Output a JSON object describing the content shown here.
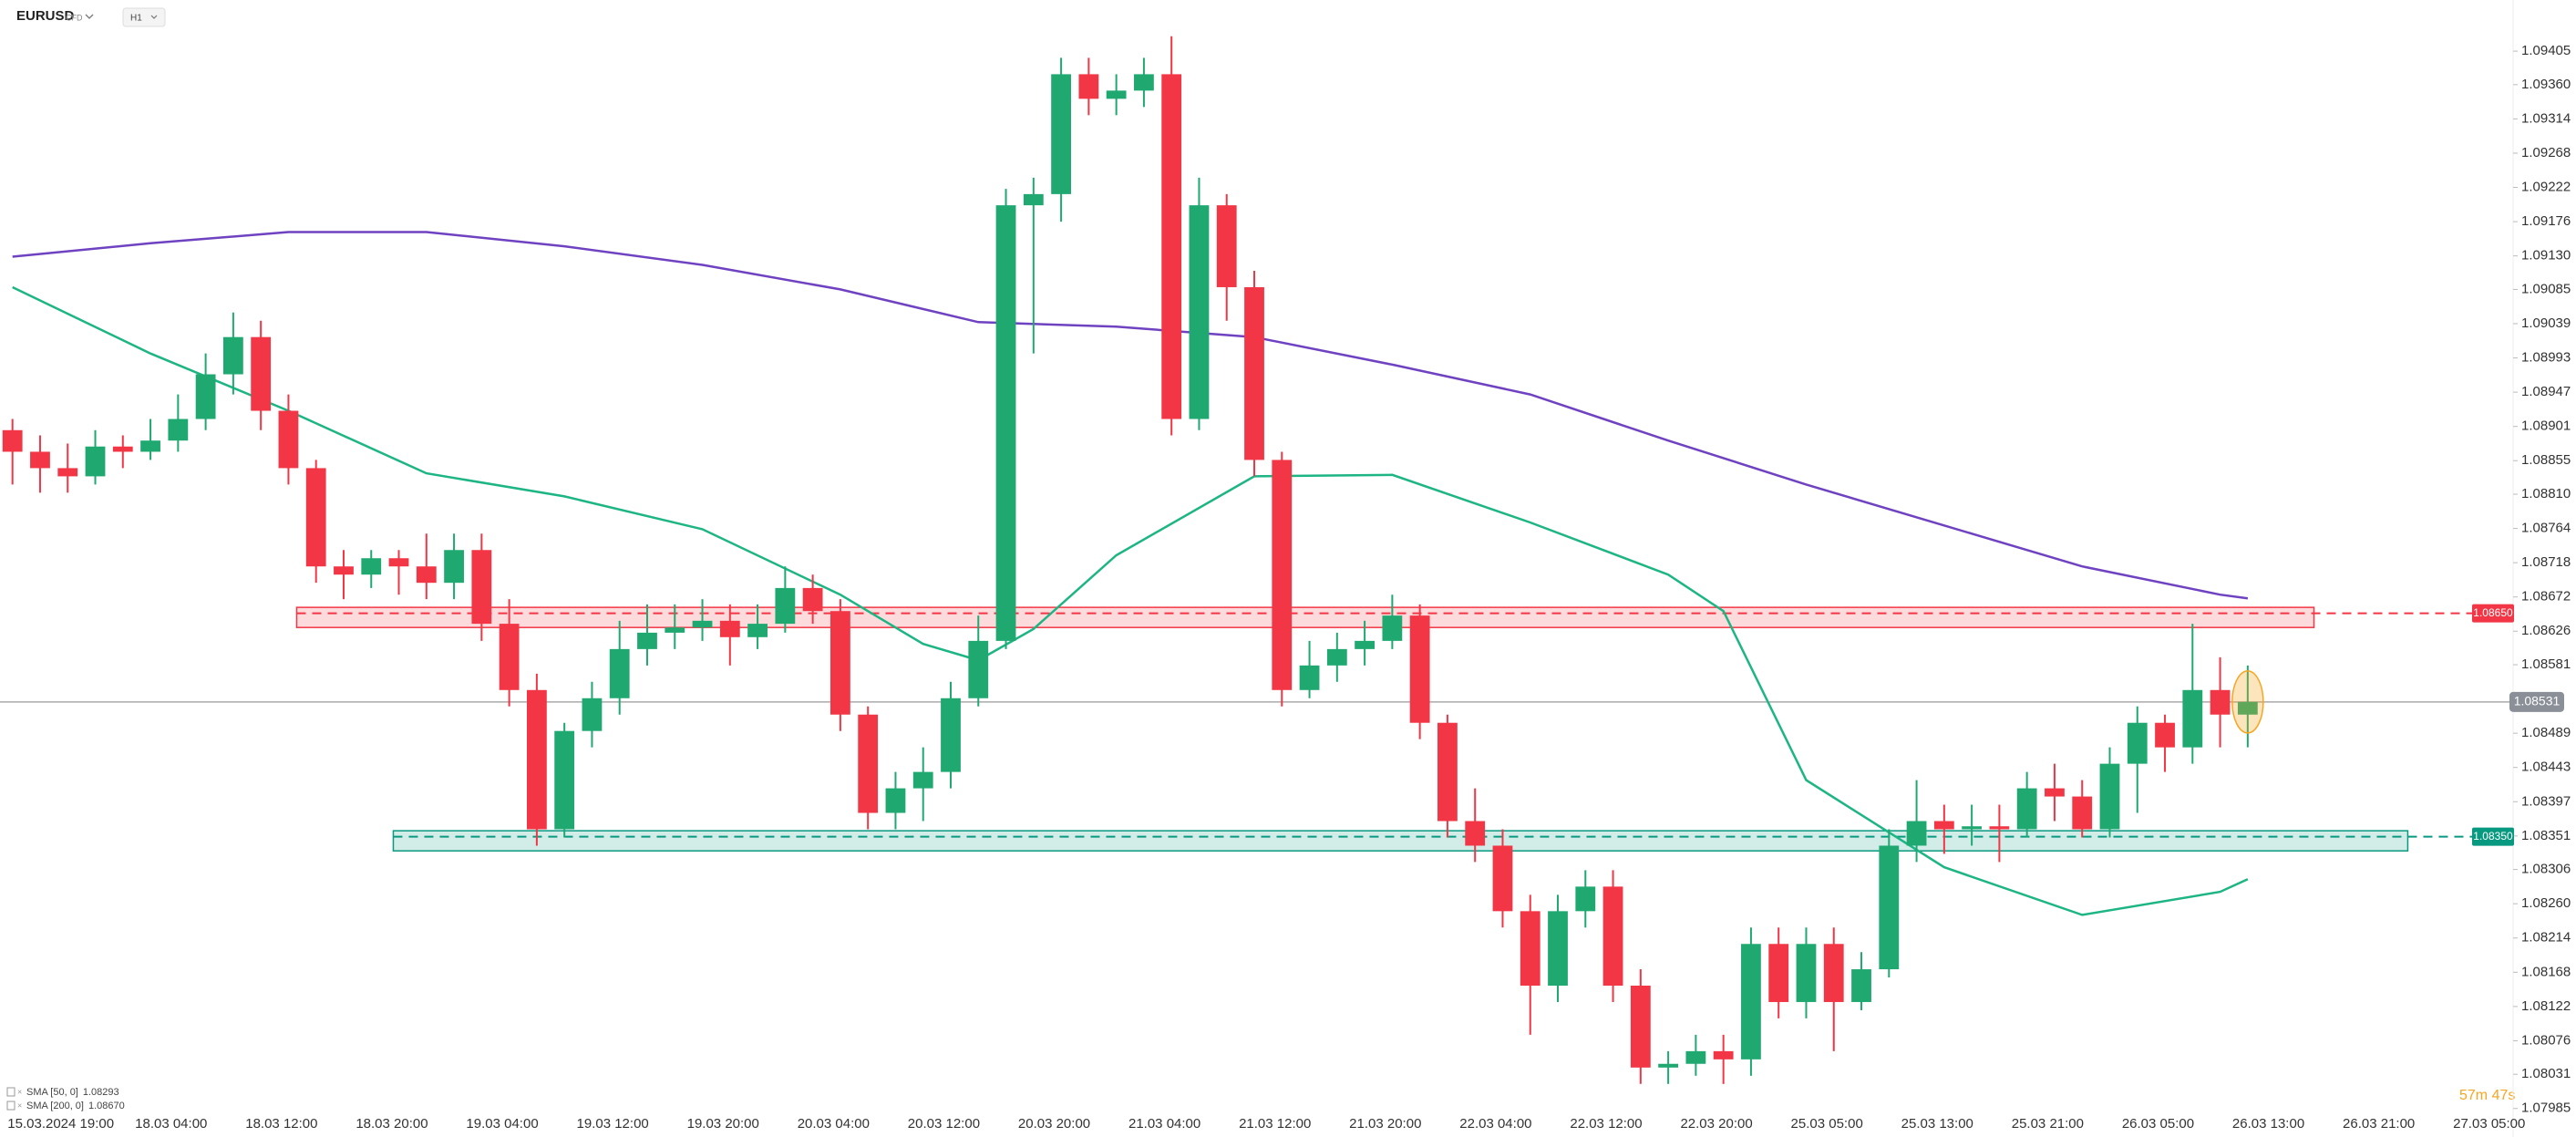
{
  "chart_data": {
    "type": "candlestick",
    "symbol": "EURUSD",
    "instrument_type": "CFD",
    "interval": "H1",
    "timer": "57m 47s",
    "categories": [
      "15.03.2024 19:00",
      "18.03 04:00",
      "18.03 12:00",
      "18.03 20:00",
      "19.03 04:00",
      "19.03 12:00",
      "19.03 20:00",
      "20.03 04:00",
      "20.03 12:00",
      "20.03 20:00",
      "21.03 04:00",
      "21.03 12:00",
      "21.03 20:00",
      "22.03 04:00",
      "22.03 12:00",
      "22.03 20:00",
      "25.03 05:00",
      "25.03 13:00",
      "25.03 21:00",
      "26.03 05:00",
      "26.03 13:00",
      "26.03 21:00",
      "27.03 05:00"
    ],
    "ylim": [
      1.0797,
      1.0947
    ],
    "yticks": [
      1.09405,
      {
        "value": 1.0936,
        "label": "1.09360"
      },
      1.09314,
      1.09268,
      1.09222,
      1.09176,
      {
        "value": 1.0913,
        "label": "1.09130"
      },
      1.09085,
      1.09039,
      1.08993,
      1.08947,
      1.08901,
      1.08855,
      {
        "value": 1.0881,
        "label": "1.08810"
      },
      1.08764,
      1.08718,
      1.08672,
      1.08626,
      1.08581,
      1.08489,
      1.08443,
      1.08397,
      1.08351,
      1.08306,
      {
        "value": 1.0826,
        "label": "1.08260"
      },
      1.08214,
      1.08168,
      1.08122,
      1.08076,
      1.08031,
      1.07985
    ],
    "up_color": "#1fa971",
    "down_color": "#f23645",
    "candles": {
      "open": [
        1.08896,
        1.08867,
        1.08845,
        1.08834,
        1.08874,
        1.08867,
        1.08882,
        1.08911,
        1.08971,
        1.09021,
        1.08922,
        1.08845,
        1.08713,
        1.08702,
        1.08724,
        1.08713,
        1.08691,
        1.08735,
        1.08636,
        1.08547,
        1.0836,
        1.08492,
        1.08536,
        1.08602,
        1.08624,
        1.08631,
        1.0864,
        1.08618,
        1.08636,
        1.08684,
        1.08653,
        1.08514,
        1.08382,
        1.08415,
        1.08437,
        1.08536,
        1.08613,
        1.09198,
        1.09213,
        1.09374,
        1.09341,
        1.09352,
        1.09374,
        1.08911,
        1.09198,
        1.09088,
        1.08856,
        1.08547,
        1.0858,
        1.08602,
        1.08613,
        1.08647,
        1.08503,
        1.08371,
        1.08338,
        1.0825,
        1.0815,
        1.0825,
        1.08283,
        1.0815,
        1.0804,
        1.08045,
        1.08062,
        1.08051,
        1.08206,
        1.08128,
        1.08206,
        1.08128,
        1.08172,
        1.08338,
        1.08371,
        1.0836,
        1.08364,
        1.0836,
        1.08415,
        1.08404,
        1.0836,
        1.08448,
        1.08503,
        1.0847,
        1.08547,
        1.08514
      ],
      "high": [
        1.08911,
        1.08889,
        1.08878,
        1.08896,
        1.08889,
        1.08911,
        1.08944,
        1.08999,
        1.09054,
        1.09043,
        1.08944,
        1.08856,
        1.08735,
        1.08735,
        1.08735,
        1.08757,
        1.08757,
        1.08757,
        1.08669,
        1.08569,
        1.08503,
        1.08558,
        1.0864,
        1.08662,
        1.08662,
        1.08669,
        1.08662,
        1.08662,
        1.08713,
        1.08702,
        1.08669,
        1.08525,
        1.08437,
        1.0847,
        1.08558,
        1.08647,
        1.0922,
        1.09235,
        1.09396,
        1.09396,
        1.09374,
        1.09396,
        1.09425,
        1.09235,
        1.09213,
        1.0911,
        1.08867,
        1.08613,
        1.08624,
        1.0864,
        1.08675,
        1.08662,
        1.08514,
        1.08415,
        1.0836,
        1.08272,
        1.08272,
        1.08305,
        1.08305,
        1.08172,
        1.08062,
        1.08084,
        1.08084,
        1.08228,
        1.08228,
        1.08228,
        1.08228,
        1.08195,
        1.0836,
        1.08426,
        1.08393,
        1.08393,
        1.08393,
        1.08437,
        1.08448,
        1.08426,
        1.0847,
        1.08525,
        1.08514,
        1.08636,
        1.08591,
        1.0858
      ],
      "low": [
        1.08823,
        1.08812,
        1.08812,
        1.08823,
        1.08845,
        1.08856,
        1.08867,
        1.08896,
        1.08944,
        1.08896,
        1.08823,
        1.08691,
        1.08669,
        1.08684,
        1.08675,
        1.08669,
        1.08669,
        1.08613,
        1.08525,
        1.08338,
        1.08349,
        1.0847,
        1.08514,
        1.0858,
        1.08602,
        1.08613,
        1.0858,
        1.08602,
        1.08624,
        1.08636,
        1.08492,
        1.0836,
        1.0836,
        1.08371,
        1.08415,
        1.08525,
        1.08602,
        1.08999,
        1.09176,
        1.09319,
        1.09319,
        1.0933,
        1.08889,
        1.08896,
        1.09043,
        1.08834,
        1.08525,
        1.08536,
        1.08558,
        1.0858,
        1.08602,
        1.08481,
        1.08349,
        1.08316,
        1.08228,
        1.08084,
        1.08128,
        1.08228,
        1.08128,
        1.08018,
        1.08018,
        1.08029,
        1.08018,
        1.08029,
        1.08106,
        1.08106,
        1.08062,
        1.08117,
        1.08161,
        1.08316,
        1.08327,
        1.08338,
        1.08316,
        1.08349,
        1.08371,
        1.08349,
        1.08349,
        1.08382,
        1.08437,
        1.08448,
        1.0847,
        1.0847
      ],
      "close": [
        1.08867,
        1.08845,
        1.08834,
        1.08874,
        1.08867,
        1.08882,
        1.08911,
        1.08971,
        1.09021,
        1.08922,
        1.08845,
        1.08713,
        1.08702,
        1.08724,
        1.08713,
        1.08691,
        1.08735,
        1.08636,
        1.08547,
        1.0836,
        1.08492,
        1.08536,
        1.08602,
        1.08624,
        1.08631,
        1.0864,
        1.08618,
        1.08636,
        1.08684,
        1.08653,
        1.08514,
        1.08382,
        1.08415,
        1.08437,
        1.08536,
        1.08613,
        1.09198,
        1.09213,
        1.09374,
        1.09341,
        1.09352,
        1.09374,
        1.08911,
        1.09198,
        1.09088,
        1.08856,
        1.08547,
        1.0858,
        1.08602,
        1.08613,
        1.08647,
        1.08503,
        1.08371,
        1.08338,
        1.0825,
        1.0815,
        1.0825,
        1.08283,
        1.0815,
        1.0804,
        1.08045,
        1.08062,
        1.08051,
        1.08206,
        1.08128,
        1.08206,
        1.08128,
        1.08172,
        1.08338,
        1.08371,
        1.0836,
        1.08364,
        1.0836,
        1.08415,
        1.08404,
        1.0836,
        1.08448,
        1.08503,
        1.0847,
        1.08547,
        1.08514,
        1.08531
      ]
    },
    "series": [
      {
        "name": "SMA [50, 0]",
        "legend_value": "1.08293",
        "color": "#1db584",
        "x": [
          0,
          5,
          10,
          15,
          20,
          25,
          30,
          33,
          35,
          37,
          40,
          45,
          50,
          55,
          60,
          62,
          65,
          70,
          75,
          80,
          81
        ],
        "values": [
          1.09088,
          1.08999,
          1.08922,
          1.08838,
          1.08807,
          1.08763,
          1.08675,
          1.08609,
          1.08587,
          1.08629,
          1.08728,
          1.08834,
          1.08836,
          1.08772,
          1.08702,
          1.08653,
          1.08426,
          1.08309,
          1.08245,
          1.08276,
          1.08293
        ]
      },
      {
        "name": "SMA [200, 0]",
        "legend_value": "1.08670",
        "color": "#6f42c1",
        "x": [
          0,
          5,
          10,
          15,
          20,
          25,
          30,
          35,
          40,
          45,
          50,
          55,
          60,
          65,
          70,
          75,
          80,
          81
        ],
        "values": [
          1.09129,
          1.09147,
          1.09162,
          1.09162,
          1.09143,
          1.09118,
          1.09085,
          1.09041,
          1.09035,
          1.09021,
          1.08984,
          1.08944,
          1.08882,
          1.08823,
          1.08768,
          1.08713,
          1.08675,
          1.0867
        ]
      }
    ],
    "levels": [
      {
        "value": 1.0865,
        "label": "1.08650",
        "color": "#f23645",
        "zone": [
          1.08631,
          1.08658
        ],
        "start": 10.3,
        "end": 83.4
      },
      {
        "value": 1.0835,
        "label": "1.08350",
        "color": "#089981",
        "zone": [
          1.08331,
          1.08358
        ],
        "start": 13.8,
        "end": 86.8
      }
    ]
  }
}
